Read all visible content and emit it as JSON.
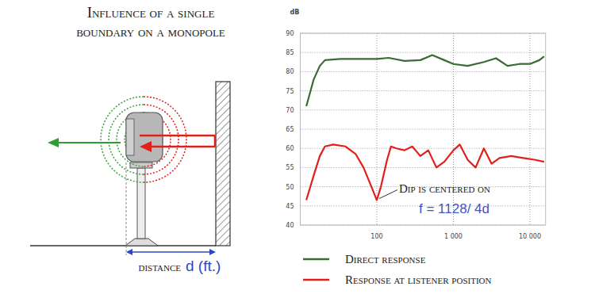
{
  "diagram": {
    "title_lines": [
      "Influence of a single",
      "boundary on a monopole"
    ],
    "distance_label": "distance",
    "distance_symbol": "d (ft.)"
  },
  "chart_data": {
    "type": "line",
    "y_label": "dB",
    "log": "x",
    "grid": true,
    "legend": "bottom",
    "xlim": [
      10,
      16000
    ],
    "xticks": [
      100,
      {
        "value": 1000,
        "label": "1 000"
      },
      {
        "value": 10000,
        "label": "10 000"
      }
    ],
    "ylim": [
      40,
      90
    ],
    "yticks": [
      40,
      45,
      50,
      55,
      60,
      65,
      70,
      75,
      80,
      85,
      90
    ],
    "series": [
      {
        "name": "Direct response",
        "color": "#3a6b35",
        "x": [
          12,
          15,
          18,
          21,
          33,
          100,
          143,
          230,
          370,
          530,
          760,
          1000,
          1540,
          2500,
          3600,
          5100,
          7300,
          10000,
          13300,
          15300
        ],
        "values": [
          71,
          78,
          81.5,
          83,
          83.3,
          83.3,
          83.6,
          82.8,
          83,
          84.3,
          83,
          82,
          81.5,
          82.5,
          83.5,
          81.5,
          82,
          82,
          83,
          84
        ]
      },
      {
        "name": "Response at listener position",
        "color": "#e0201b",
        "x": [
          12,
          15,
          18,
          21,
          27,
          39,
          53,
          67,
          85,
          100,
          113,
          136,
          153,
          180,
          230,
          290,
          370,
          470,
          600,
          760,
          1000,
          1210,
          1540,
          1950,
          2500,
          3150,
          4000,
          5700,
          8200,
          11800,
          15300
        ],
        "values": [
          46.5,
          53,
          58,
          60.5,
          61,
          60.5,
          58.5,
          55,
          50,
          46.5,
          50,
          57,
          60.5,
          60,
          59.5,
          60.5,
          58,
          59.5,
          55,
          56.5,
          59.5,
          61,
          57,
          55,
          60,
          56,
          57.5,
          58,
          57.5,
          57,
          56.5
        ]
      }
    ],
    "annotations": [
      {
        "text": "Dip is centered on",
        "formula": "f = 1128/ 4d",
        "x": 100,
        "y": 46.5
      }
    ]
  }
}
